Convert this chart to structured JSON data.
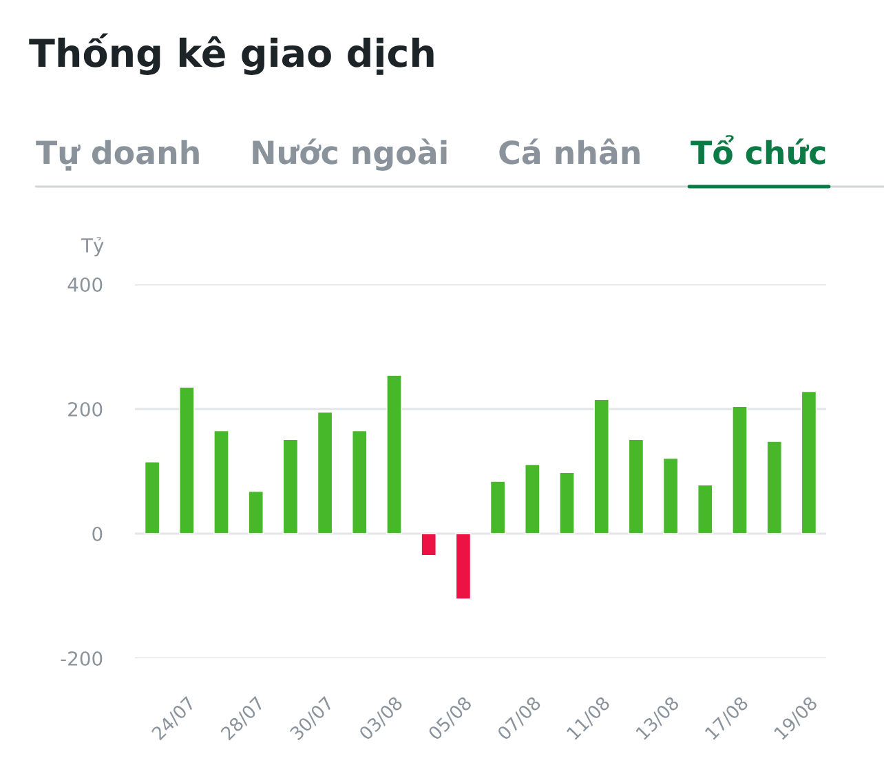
{
  "chart_data": {
    "type": "bar",
    "title": "Thống kê giao dịch",
    "subtitle": "Tổ chức",
    "annotations": [
      "Tự doanh",
      "Nước ngoài",
      "Cá nhân"
    ],
    "ylabel": "Tỷ",
    "categories": [
      null,
      "24/07",
      null,
      "28/07",
      null,
      "30/07",
      null,
      "03/08",
      null,
      "05/08",
      null,
      "07/08",
      null,
      "11/08",
      null,
      "13/08",
      null,
      "17/08",
      null,
      "19/08"
    ],
    "values": [
      115,
      235,
      165,
      68,
      151,
      195,
      165,
      254,
      -35,
      -105,
      84,
      111,
      98,
      215,
      151,
      121,
      78,
      204,
      148,
      228
    ],
    "colors": [
      "#48b82b",
      "#48b82b",
      "#48b82b",
      "#48b82b",
      "#48b82b",
      "#48b82b",
      "#48b82b",
      "#48b82b",
      "#ec1244",
      "#ec1244",
      "#48b82b",
      "#48b82b",
      "#48b82b",
      "#48b82b",
      "#48b82b",
      "#48b82b",
      "#48b82b",
      "#48b82b",
      "#48b82b",
      "#48b82b"
    ],
    "ylim": [
      -200,
      400
    ],
    "yticks": [
      -200,
      0,
      200,
      400
    ],
    "grid": "y",
    "legend": false
  }
}
